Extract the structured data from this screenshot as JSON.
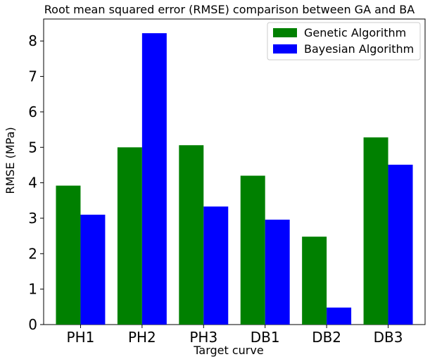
{
  "chart_data": {
    "type": "bar",
    "title": "Root mean squared error (RMSE) comparison between GA and BA",
    "xlabel": "Target curve",
    "ylabel": "RMSE (MPa)",
    "categories": [
      "PH1",
      "PH2",
      "PH3",
      "DB1",
      "DB2",
      "DB3"
    ],
    "series": [
      {
        "name": "Genetic Algorithm",
        "color": "#008000",
        "values": [
          3.92,
          5.0,
          5.06,
          4.2,
          2.48,
          5.28
        ]
      },
      {
        "name": "Bayesian Algorithm",
        "color": "#0000ff",
        "values": [
          3.1,
          8.22,
          3.33,
          2.96,
          0.48,
          4.51
        ]
      }
    ],
    "ylim": [
      0,
      8.62
    ],
    "yticks": [
      "0",
      "1",
      "2",
      "3",
      "4",
      "5",
      "6",
      "7",
      "8"
    ],
    "legend_position": "top-right",
    "grid": false
  }
}
